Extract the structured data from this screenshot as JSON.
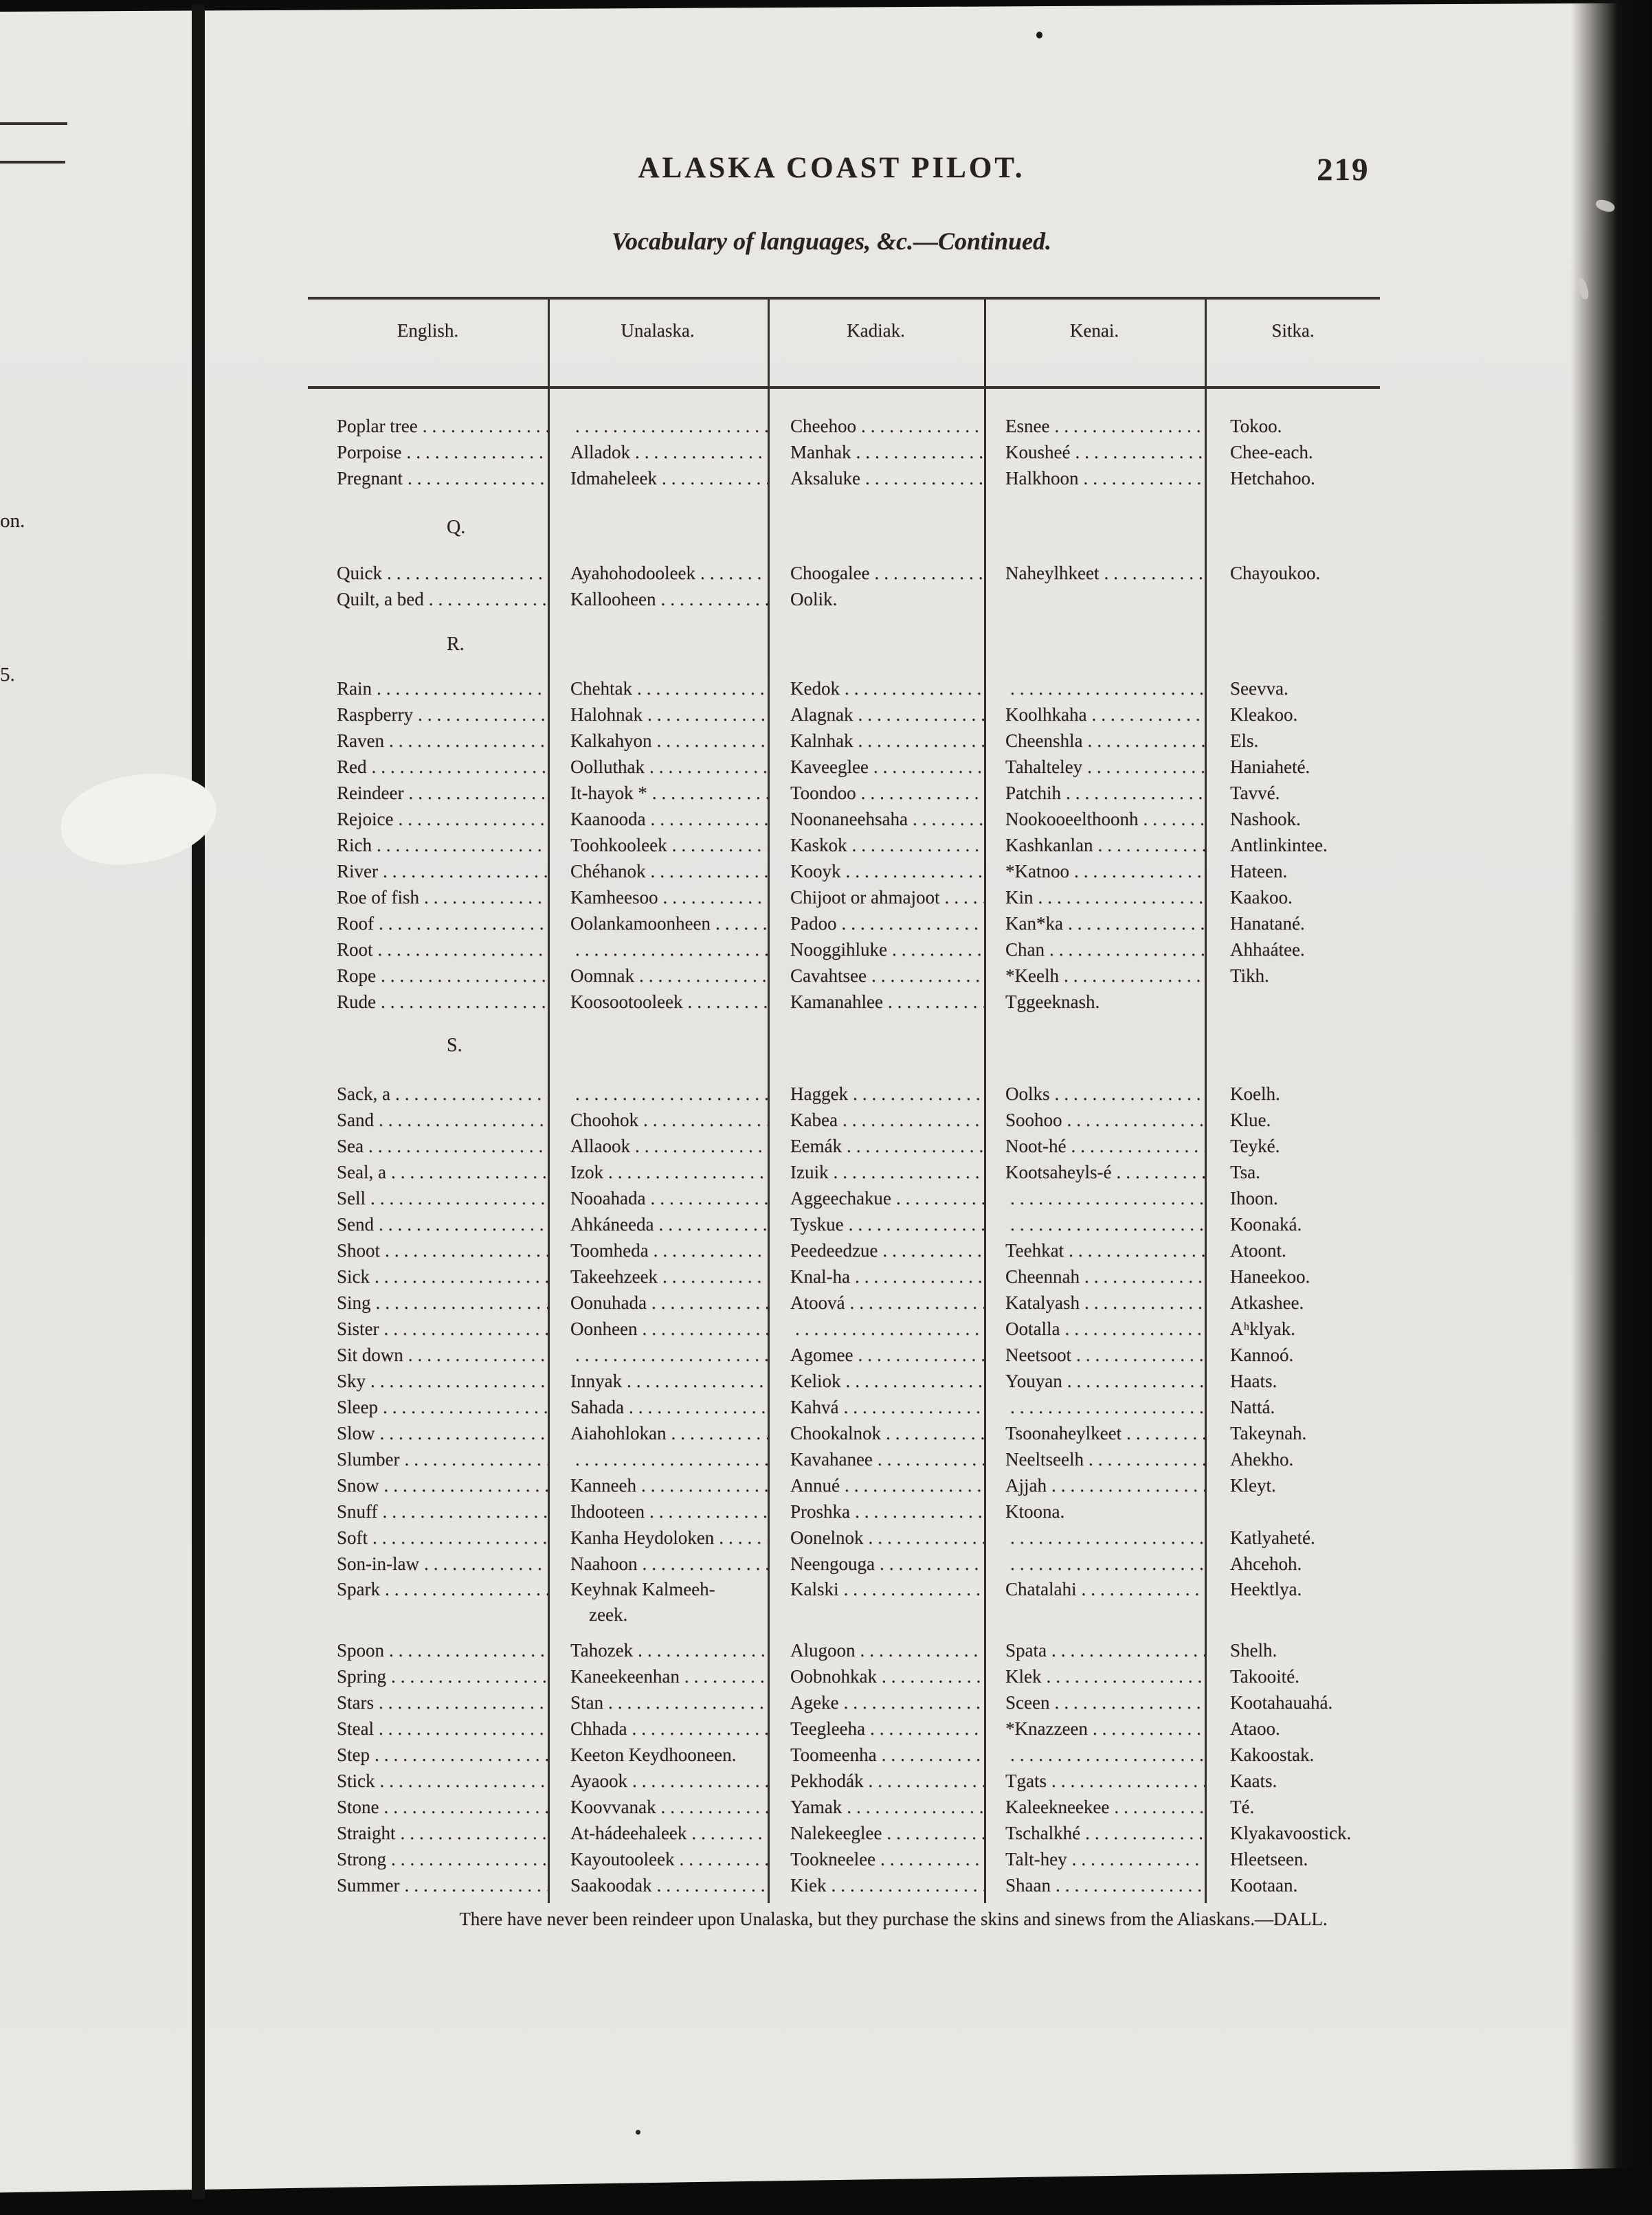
{
  "page": {
    "running_head": "ALASKA COAST PILOT.",
    "page_number": "219",
    "subtitle": "Vocabulary of languages, &c.—Continued.",
    "footnote": "There have never been reindeer upon Unalaska, but they purchase the skins and sinews from the Aliaskans.—DALL."
  },
  "margin_fragments": {
    "fragment_1": "on.",
    "fragment_2": "5."
  },
  "table": {
    "columns": [
      "English.",
      "Unalaska.",
      "Kadiak.",
      "Kenai.",
      "Sitka."
    ],
    "sections": [
      {
        "letter": "",
        "rows": [
          [
            "Poplar tree",
            "",
            "Cheehoo",
            "Esnee",
            "Tokoo."
          ],
          [
            "Porpoise",
            "Alladok",
            "Manhak",
            "Kousheé",
            "Chee-each."
          ],
          [
            "Pregnant",
            "Idmaheleek",
            "Aksaluke",
            "Halkhoon",
            "Hetchahoo."
          ]
        ]
      },
      {
        "letter": "Q.",
        "rows": [
          [
            "Quick",
            "Ayahohodooleek",
            "Choogalee",
            "Naheylhkeet",
            "Chayoukoo."
          ],
          [
            "Quilt, a bed",
            "Kallooheen",
            "Oolik.",
            "",
            ""
          ]
        ]
      },
      {
        "letter": "R.",
        "rows": [
          [
            "Rain",
            "Chehtak",
            "Kedok",
            "",
            "Seevva."
          ],
          [
            "Raspberry",
            "Halohnak",
            "Alagnak",
            "Koolhkaha",
            "Kleakoo."
          ],
          [
            "Raven",
            "Kalkahyon",
            "Kalnhak",
            "Cheenshla",
            "Els."
          ],
          [
            "Red",
            "Oolluthak",
            "Kaveeglee",
            "Tahalteley",
            "Haniaheté."
          ],
          [
            "Reindeer",
            "It-hayok *",
            "Toondoo",
            "Patchih",
            "Tavvé."
          ],
          [
            "Rejoice",
            "Kaanooda",
            "Noonaneehsaha",
            "Nookooeelthoonh",
            "Nashook."
          ],
          [
            "Rich",
            "Toohkooleek",
            "Kaskok",
            "Kashkanlan",
            "Antlinkintee."
          ],
          [
            "River",
            "Chéhanok",
            "Kooyk",
            "*Katnoo",
            "Hateen."
          ],
          [
            "Roe of fish",
            "Kamheesoo",
            "Chijoot or ahmajoot",
            "Kin",
            "Kaakoo."
          ],
          [
            "Roof",
            "Oolankamoonheen",
            "Padoo",
            "Kan*ka",
            "Hanatané."
          ],
          [
            "Root",
            "",
            "Nooggihluke",
            "Chan",
            "Ahhaátee."
          ],
          [
            "Rope",
            "Oomnak",
            "Cavahtsee",
            "*Keelh",
            "Tikh."
          ],
          [
            "Rude",
            "Koosootooleek",
            "Kamanahlee",
            "Tggeeknash.",
            ""
          ]
        ]
      },
      {
        "letter": "S.",
        "rows": [
          [
            "Sack, a",
            "",
            "Haggek",
            "Oolks",
            "Koelh."
          ],
          [
            "Sand",
            "Choohok",
            "Kabea",
            "Soohoo",
            "Klue."
          ],
          [
            "Sea",
            "Allaook",
            "Eemák",
            "Noot-hé",
            "Teyké."
          ],
          [
            "Seal, a",
            "Izok",
            "Izuik",
            "Kootsaheyls-é",
            "Tsa."
          ],
          [
            "Sell",
            "Nooahada",
            "Aggeechakue",
            "",
            "Ihoon."
          ],
          [
            "Send",
            "Ahkáneeda",
            "Tyskue",
            "",
            "Koonaká."
          ],
          [
            "Shoot",
            "Toomheda",
            "Peedeedzue",
            "Teehkat",
            "Atoont."
          ],
          [
            "Sick",
            "Takeehzeek",
            "Knal-ha",
            "Cheennah",
            "Haneekoo."
          ],
          [
            "Sing",
            "Oonuhada",
            "Atoová",
            "Katalyash",
            "Atkashee."
          ],
          [
            "Sister",
            "Oonheen",
            "",
            "Ootalla",
            "Aʰklyak."
          ],
          [
            "Sit down",
            "",
            "Agomee",
            "Neetsoot",
            "Kannoó."
          ],
          [
            "Sky",
            "Innyak",
            "Keliok",
            "Youyan",
            "Haats."
          ],
          [
            "Sleep",
            "Sahada",
            "Kahvá",
            "",
            "Nattá."
          ],
          [
            "Slow",
            "Aiahohlokan",
            "Chookalnok",
            "Tsoonaheylkeet",
            "Takeynah."
          ],
          [
            "Slumber",
            "",
            "Kavahanee",
            "Neeltseelh",
            "Ahekho."
          ],
          [
            "Snow",
            "Kanneeh",
            "Annué",
            "Ajjah",
            "Kleyt."
          ],
          [
            "Snuff",
            "Ihdooteen",
            "Proshka",
            "Ktoona.",
            ""
          ],
          [
            "Soft",
            "Kanha Heydoloken",
            "Oonelnok",
            "",
            "Katlyaheté."
          ],
          [
            "Son-in-law",
            "Naahoon",
            "Neengouga",
            "",
            "Ahcehoh."
          ],
          [
            "Spark",
            "Keyhnak Kalmeeh-\n zeek.",
            "Kalski",
            "Chatalahi",
            "Heektlya."
          ],
          [
            "Spoon",
            "Tahozek",
            "Alugoon",
            "Spata",
            "Shelh."
          ],
          [
            "Spring",
            "Kaneekeenhan",
            "Oobnohkak",
            "Klek",
            "Takooité."
          ],
          [
            "Stars",
            "Stan",
            "Ageke",
            "Sceen",
            "Kootahauahá."
          ],
          [
            "Steal",
            "Chhada",
            "Teegleeha",
            "*Knazzeen",
            "Ataoo."
          ],
          [
            "Step",
            "Keeton Keydhooneen.",
            "Toomeenha",
            "",
            "Kakoostak."
          ],
          [
            "Stick",
            "Ayaook",
            "Pekhodák",
            "Tgats",
            "Kaats."
          ],
          [
            "Stone",
            "Koovvanak",
            "Yamak",
            "Kaleekneekee",
            "Té."
          ],
          [
            "Straight",
            "At-hádeehaleek",
            "Nalekeeglee",
            "Tschalkhé",
            "Klyakavoostick."
          ],
          [
            "Strong",
            "Kayoutooleek",
            "Tookneelee",
            "Talt-hey",
            "Hleetseen."
          ],
          [
            "Summer",
            "Saakoodak",
            "Kiek",
            "Shaan",
            "Kootaan."
          ]
        ]
      }
    ]
  }
}
